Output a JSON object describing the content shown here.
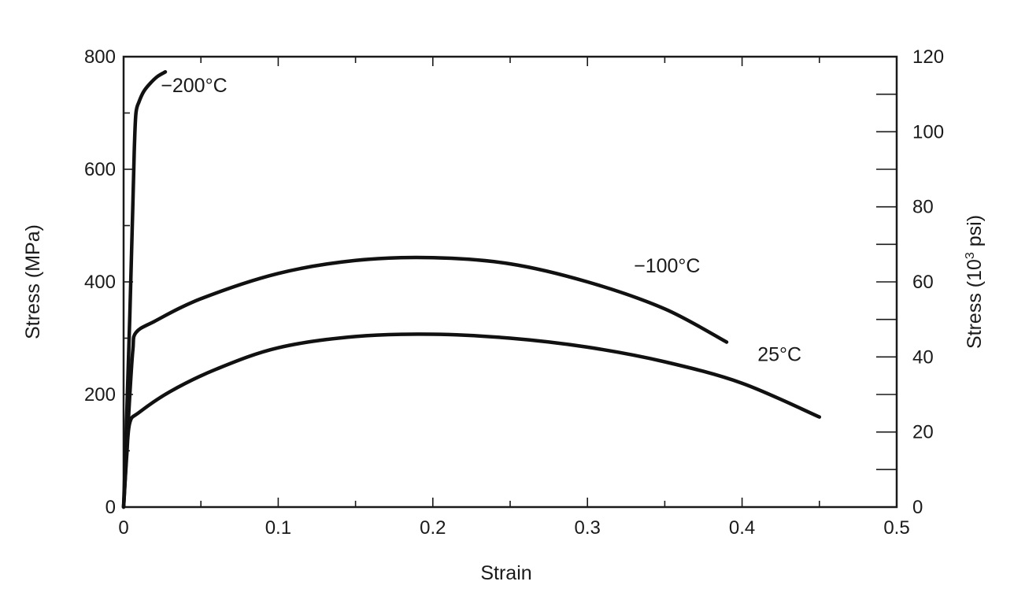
{
  "chart_data": {
    "type": "line",
    "xlabel": "Strain",
    "ylabel_left": "Stress (MPa)",
    "ylabel_right_prefix": "Stress (10",
    "ylabel_right_sup": "3",
    "ylabel_right_suffix": " psi)",
    "xlim": [
      0,
      0.5
    ],
    "ylim_left": [
      0,
      800
    ],
    "ylim_right": [
      0,
      120
    ],
    "x_ticks": [
      "0",
      "0.1",
      "0.2",
      "0.3",
      "0.4",
      "0.5"
    ],
    "y_left_ticks": [
      "0",
      "200",
      "400",
      "600",
      "800"
    ],
    "y_right_ticks": [
      "0",
      "20",
      "40",
      "60",
      "80",
      "100",
      "120"
    ],
    "grid": false,
    "series": [
      {
        "name": "−200°C",
        "x": [
          0,
          0.002,
          0.004,
          0.006,
          0.007,
          0.008,
          0.01,
          0.013,
          0.017,
          0.022,
          0.027
        ],
        "y": [
          0,
          160,
          340,
          540,
          640,
          700,
          720,
          738,
          752,
          765,
          773
        ]
      },
      {
        "name": "−100°C",
        "x": [
          0,
          0.002,
          0.004,
          0.006,
          0.008,
          0.02,
          0.05,
          0.1,
          0.15,
          0.2,
          0.25,
          0.3,
          0.35,
          0.39
        ],
        "y": [
          0,
          100,
          200,
          280,
          310,
          330,
          370,
          415,
          438,
          443,
          432,
          400,
          352,
          293
        ]
      },
      {
        "name": "25°C",
        "x": [
          0,
          0.002,
          0.004,
          0.01,
          0.03,
          0.06,
          0.1,
          0.15,
          0.2,
          0.25,
          0.3,
          0.35,
          0.4,
          0.45
        ],
        "y": [
          0,
          90,
          150,
          168,
          205,
          245,
          283,
          303,
          307,
          300,
          284,
          258,
          220,
          160
        ]
      }
    ]
  }
}
